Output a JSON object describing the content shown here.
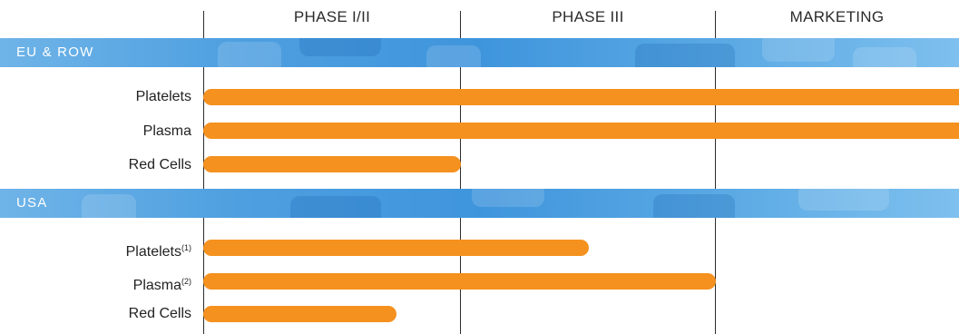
{
  "phases": [
    "PHASE I/II",
    "PHASE III",
    "MARKETING"
  ],
  "colors": {
    "bar": "#f5911e",
    "band": "#4e9fe0",
    "grid": "#2d2d2d"
  },
  "regions": [
    {
      "name": "EU & ROW",
      "rows": [
        {
          "label": "Platelets",
          "note": "",
          "end_phase": "MARKETING",
          "progress": 1.0
        },
        {
          "label": "Plasma",
          "note": "",
          "end_phase": "MARKETING",
          "progress": 1.0
        },
        {
          "label": "Red Cells",
          "note": "",
          "end_phase": "PHASE I/II",
          "progress": 1.0
        }
      ]
    },
    {
      "name": "USA",
      "rows": [
        {
          "label": "Platelets",
          "note": "(1)",
          "end_phase": "PHASE III",
          "progress": 0.5
        },
        {
          "label": "Plasma",
          "note": "(2)",
          "end_phase": "PHASE III",
          "progress": 1.0
        },
        {
          "label": "Red Cells",
          "note": "",
          "end_phase": "PHASE I/II",
          "progress": 0.75
        }
      ]
    }
  ]
}
